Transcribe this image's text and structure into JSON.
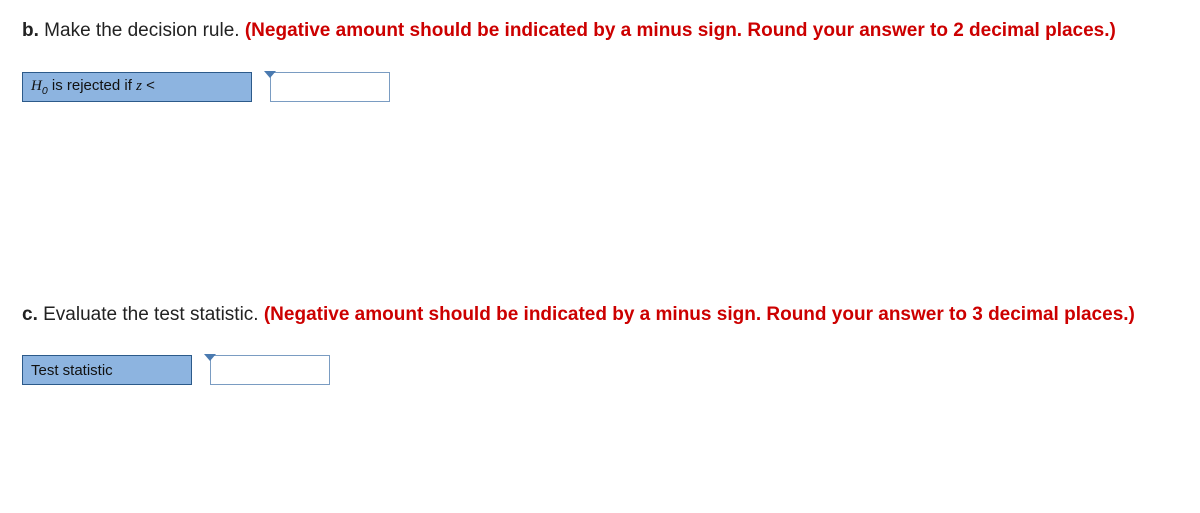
{
  "colors": {
    "red": "#cc0000",
    "cell_bg": "#8db4e0",
    "cell_border": "#2c5a8a",
    "input_border": "#7a9cc2",
    "text": "#222222",
    "bg": "#ffffff"
  },
  "part_b": {
    "label": "b.",
    "prompt_plain": " Make the decision rule. ",
    "prompt_red": "(Negative amount should be indicated by a minus sign. Round your answer to 2 decimal places.)",
    "cell_prefix": "H",
    "cell_sub": "0",
    "cell_rest": " is rejected if ",
    "cell_var": "z",
    "cell_op": " <",
    "input_value": ""
  },
  "part_c": {
    "label": "c.",
    "prompt_plain": " Evaluate the test statistic. ",
    "prompt_red": "(Negative amount should be indicated by a minus sign. Round your answer to 3 decimal places.)",
    "cell_label": "Test statistic",
    "input_value": ""
  }
}
